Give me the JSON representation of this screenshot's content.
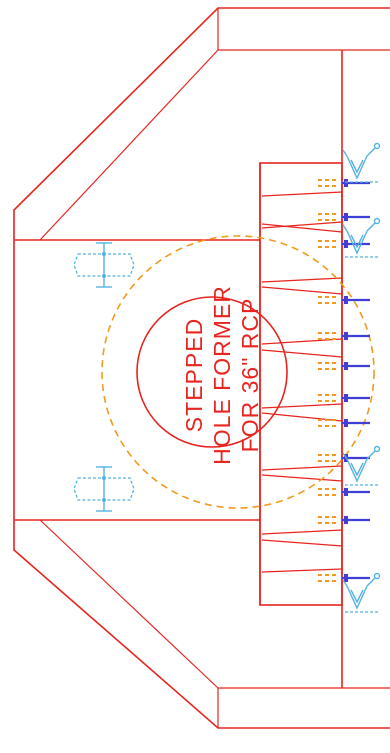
{
  "note": {
    "lines": [
      "STEPPED",
      "HOLE FORMER",
      "FOR 36\" RCP"
    ]
  },
  "colors": {
    "outline": "#e8241f",
    "hole_ring": "#f39a1e",
    "rebar": "#3f3fd8",
    "lifting_hardware": "#55b4df",
    "background": "#ffffff"
  }
}
